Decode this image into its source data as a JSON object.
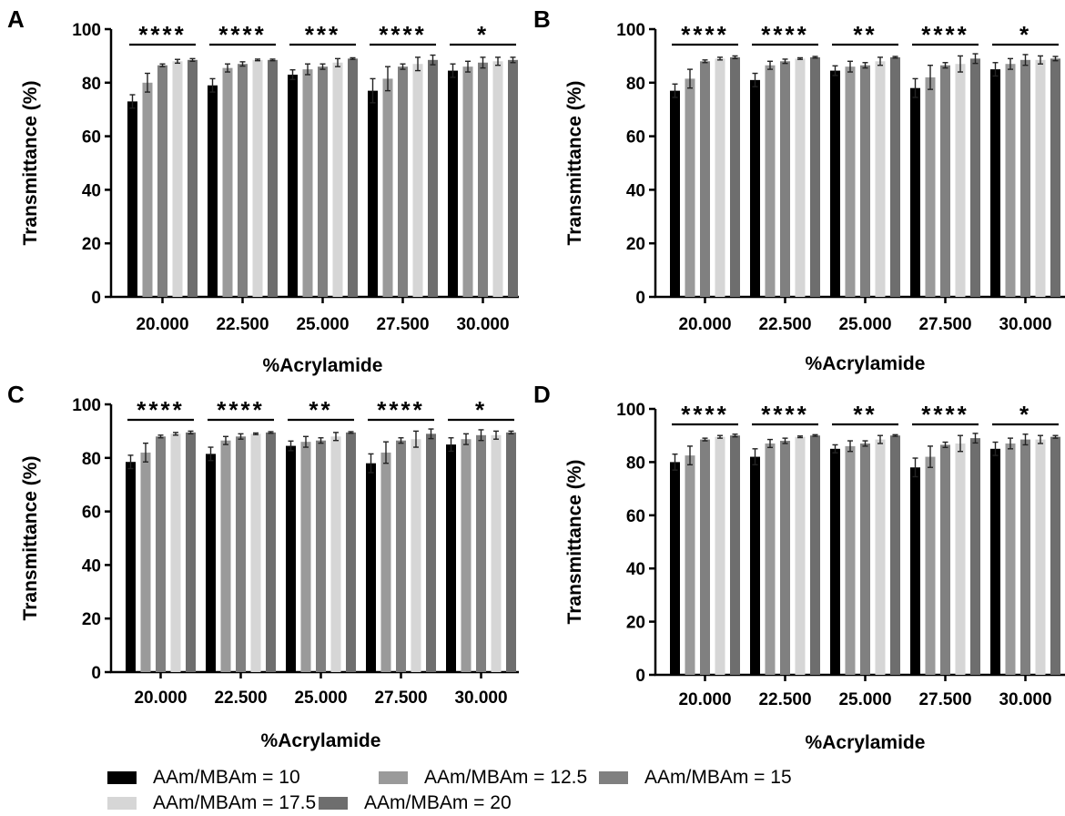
{
  "colors": {
    "series": [
      "#000000",
      "#9a9a9a",
      "#808080",
      "#d6d6d6",
      "#6e6e6e"
    ],
    "axis": "#000000"
  },
  "legend": [
    "AAm/MBAm = 10",
    "AAm/MBAm = 12.5",
    "AAm/MBAm = 15",
    "AAm/MBAm = 17.5",
    "AAm/MBAm = 20"
  ],
  "chart_data": [
    {
      "panel": "A",
      "type": "bar",
      "xlabel": "%Acrylamide",
      "ylabel": "Transmittance (%)",
      "ylim": [
        0,
        100
      ],
      "yticks": [
        0,
        20,
        40,
        60,
        80,
        100
      ],
      "categories": [
        "20.000",
        "22.500",
        "25.000",
        "27.500",
        "30.000"
      ],
      "significance": [
        "****",
        "****",
        "***",
        "****",
        "*"
      ],
      "series": [
        {
          "name": "AAm/MBAm = 10",
          "values": [
            73,
            79,
            83,
            77,
            84.5
          ],
          "errors": [
            2.5,
            2.5,
            1.8,
            4.5,
            2.5
          ]
        },
        {
          "name": "AAm/MBAm = 12.5",
          "values": [
            80,
            85.5,
            85,
            81.5,
            86
          ],
          "errors": [
            3.5,
            1.5,
            2,
            4.5,
            2
          ]
        },
        {
          "name": "AAm/MBAm = 15",
          "values": [
            86.5,
            87,
            86,
            86,
            87.5
          ],
          "errors": [
            0.5,
            0.8,
            1,
            1,
            2
          ]
        },
        {
          "name": "AAm/MBAm = 17.5",
          "values": [
            88,
            88.5,
            87.5,
            87,
            88
          ],
          "errors": [
            0.7,
            0.3,
            1.5,
            2.5,
            1.5
          ]
        },
        {
          "name": "AAm/MBAm = 20",
          "values": [
            88.5,
            88.5,
            89,
            88.5,
            88.5
          ],
          "errors": [
            0.5,
            0.3,
            0.3,
            1.8,
            1
          ]
        }
      ]
    },
    {
      "panel": "B",
      "type": "bar",
      "xlabel": "%Acrylamide",
      "ylabel": "Transmittance (%)",
      "ylim": [
        0,
        100
      ],
      "yticks": [
        0,
        20,
        40,
        60,
        80,
        100
      ],
      "categories": [
        "20.000",
        "22.500",
        "25.000",
        "27.500",
        "30.000"
      ],
      "significance": [
        "****",
        "****",
        "**",
        "****",
        "*"
      ],
      "series": [
        {
          "name": "AAm/MBAm = 10",
          "values": [
            77,
            81,
            84.5,
            78,
            85
          ],
          "errors": [
            2.5,
            2.5,
            1.8,
            3.5,
            2.5
          ]
        },
        {
          "name": "AAm/MBAm = 12.5",
          "values": [
            81.5,
            86.5,
            86,
            82,
            87
          ],
          "errors": [
            3.5,
            1.5,
            2,
            4.5,
            2
          ]
        },
        {
          "name": "AAm/MBAm = 15",
          "values": [
            88,
            88,
            86.5,
            86.5,
            88.5
          ],
          "errors": [
            0.5,
            0.8,
            1,
            1,
            2
          ]
        },
        {
          "name": "AAm/MBAm = 17.5",
          "values": [
            89,
            89,
            88,
            87,
            88.5
          ],
          "errors": [
            0.5,
            0.3,
            1.5,
            3,
            1.5
          ]
        },
        {
          "name": "AAm/MBAm = 20",
          "values": [
            89.5,
            89.5,
            89.5,
            89,
            89
          ],
          "errors": [
            0.5,
            0.3,
            0.3,
            1.8,
            0.8
          ]
        }
      ]
    },
    {
      "panel": "C",
      "type": "bar",
      "xlabel": "%Acrylamide",
      "ylabel": "Transmittance (%)",
      "ylim": [
        0,
        100
      ],
      "yticks": [
        0,
        20,
        40,
        60,
        80,
        100
      ],
      "categories": [
        "20.000",
        "22.500",
        "25.000",
        "27.500",
        "30.000"
      ],
      "significance": [
        "****",
        "****",
        "**",
        "****",
        "*"
      ],
      "series": [
        {
          "name": "AAm/MBAm = 10",
          "values": [
            78.5,
            81.5,
            84.5,
            78,
            85
          ],
          "errors": [
            2.5,
            2.5,
            1.8,
            3.5,
            2.5
          ]
        },
        {
          "name": "AAm/MBAm = 12.5",
          "values": [
            82,
            86.5,
            86,
            82,
            87
          ],
          "errors": [
            3.5,
            1.5,
            2,
            4,
            2
          ]
        },
        {
          "name": "AAm/MBAm = 15",
          "values": [
            88,
            88,
            86.5,
            86.5,
            88.5
          ],
          "errors": [
            0.5,
            1,
            1,
            1,
            2
          ]
        },
        {
          "name": "AAm/MBAm = 17.5",
          "values": [
            89,
            89,
            88,
            87,
            88.5
          ],
          "errors": [
            0.5,
            0.3,
            1.5,
            3,
            1.5
          ]
        },
        {
          "name": "AAm/MBAm = 20",
          "values": [
            89.5,
            89.5,
            89.5,
            89,
            89.5
          ],
          "errors": [
            0.5,
            0.3,
            0.3,
            1.8,
            0.5
          ]
        }
      ]
    },
    {
      "panel": "D",
      "type": "bar",
      "xlabel": "%Acrylamide",
      "ylabel": "Transmittance (%)",
      "ylim": [
        0,
        100
      ],
      "yticks": [
        0,
        20,
        40,
        60,
        80,
        100
      ],
      "categories": [
        "20.000",
        "22.500",
        "25.000",
        "27.500",
        "30.000"
      ],
      "significance": [
        "****",
        "****",
        "**",
        "****",
        "*"
      ],
      "series": [
        {
          "name": "AAm/MBAm = 10",
          "values": [
            80,
            82,
            85,
            78,
            85
          ],
          "errors": [
            3,
            3,
            1.5,
            3.5,
            2.5
          ]
        },
        {
          "name": "AAm/MBAm = 12.5",
          "values": [
            82.5,
            87,
            86,
            82,
            87
          ],
          "errors": [
            3.5,
            1.5,
            2,
            4,
            2
          ]
        },
        {
          "name": "AAm/MBAm = 15",
          "values": [
            88.5,
            88,
            87,
            86.5,
            88.5
          ],
          "errors": [
            0.5,
            1,
            1,
            1,
            2
          ]
        },
        {
          "name": "AAm/MBAm = 17.5",
          "values": [
            89.5,
            89.5,
            88.5,
            87,
            88.5
          ],
          "errors": [
            0.5,
            0.3,
            1.5,
            3,
            1.5
          ]
        },
        {
          "name": "AAm/MBAm = 20",
          "values": [
            90,
            90,
            90,
            89,
            89.5
          ],
          "errors": [
            0.5,
            0.3,
            0.3,
            1.8,
            0.5
          ]
        }
      ]
    }
  ]
}
